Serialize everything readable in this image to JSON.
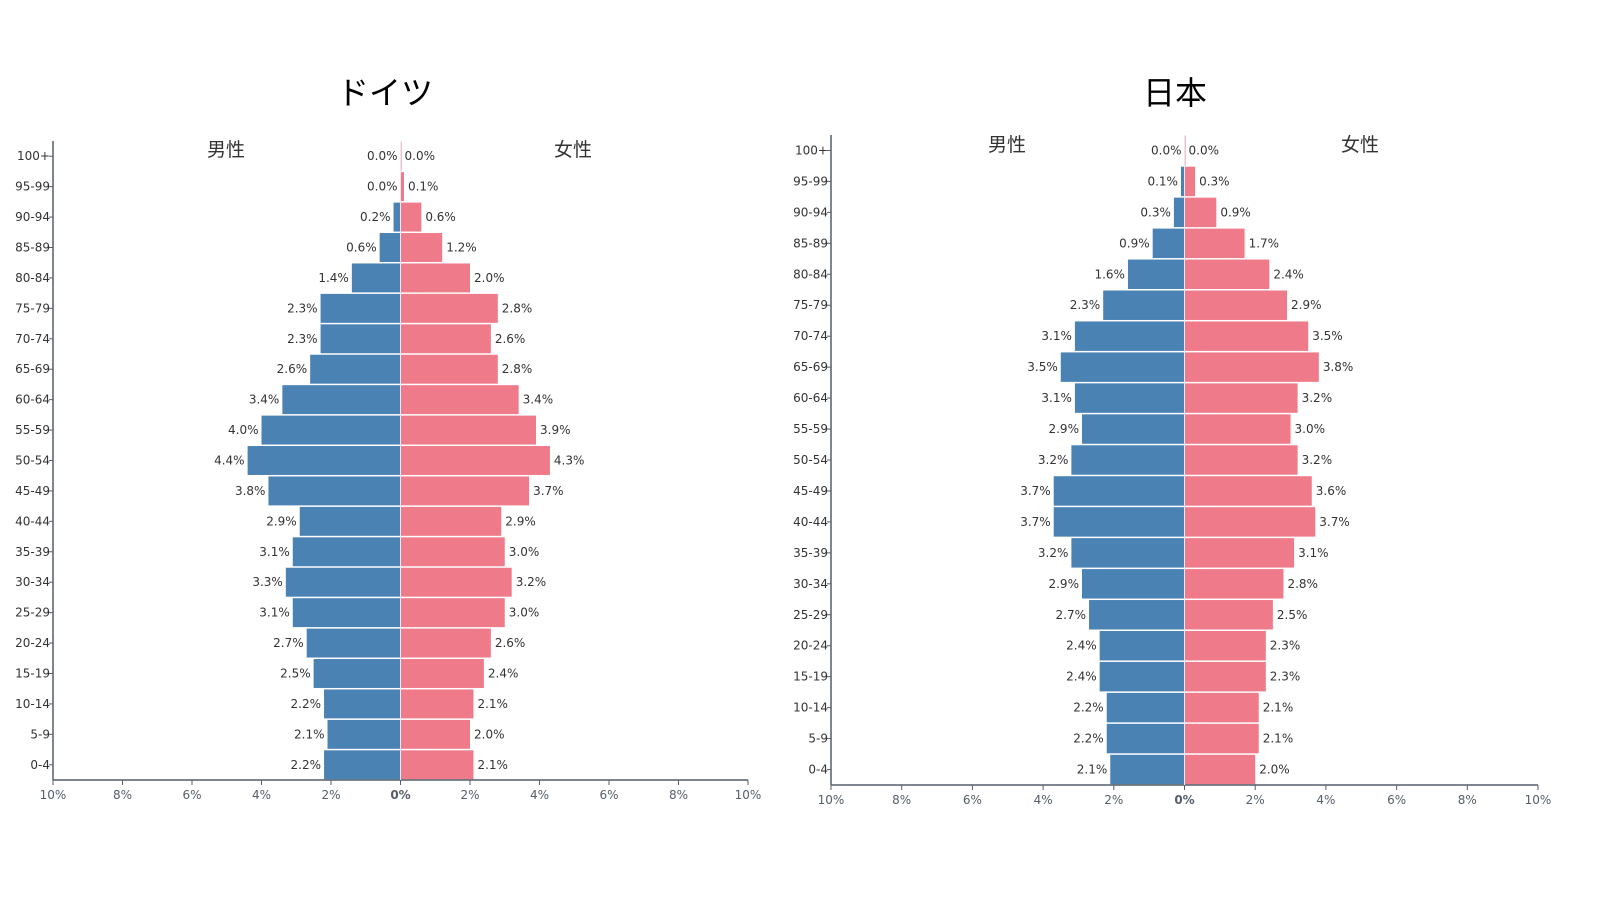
{
  "colors": {
    "male": "#4a82b4",
    "female": "#ef7b8a",
    "axis": "#555e6b",
    "text": "#333333"
  },
  "chart_data": [
    {
      "type": "bar",
      "title": "ドイツ",
      "male_label": "男性",
      "female_label": "女性",
      "categories": [
        "100+",
        "95-99",
        "90-94",
        "85-89",
        "80-84",
        "75-79",
        "70-74",
        "65-69",
        "60-64",
        "55-59",
        "50-54",
        "45-49",
        "40-44",
        "35-39",
        "30-34",
        "25-29",
        "20-24",
        "15-19",
        "10-14",
        "5-9",
        "0-4"
      ],
      "series": [
        {
          "name": "男性",
          "values": [
            0.0,
            0.0,
            0.2,
            0.6,
            1.4,
            2.3,
            2.3,
            2.6,
            3.4,
            4.0,
            4.4,
            3.8,
            2.9,
            3.1,
            3.3,
            3.1,
            2.7,
            2.5,
            2.2,
            2.1,
            2.2
          ],
          "labels": [
            "0.0%",
            "0.0%",
            "0.2%",
            "0.6%",
            "1.4%",
            "2.3%",
            "2.3%",
            "2.6%",
            "3.4%",
            "4.0%",
            "4.4%",
            "3.8%",
            "2.9%",
            "3.1%",
            "3.3%",
            "3.1%",
            "2.7%",
            "2.5%",
            "2.2%",
            "2.1%",
            "2.2%"
          ]
        },
        {
          "name": "女性",
          "values": [
            0.0,
            0.1,
            0.6,
            1.2,
            2.0,
            2.8,
            2.6,
            2.8,
            3.4,
            3.9,
            4.3,
            3.7,
            2.9,
            3.0,
            3.2,
            3.0,
            2.6,
            2.4,
            2.1,
            2.0,
            2.1
          ],
          "labels": [
            "0.0%",
            "0.1%",
            "0.6%",
            "1.2%",
            "2.0%",
            "2.8%",
            "2.6%",
            "2.8%",
            "3.4%",
            "3.9%",
            "4.3%",
            "3.7%",
            "2.9%",
            "3.0%",
            "3.2%",
            "3.0%",
            "2.6%",
            "2.4%",
            "2.1%",
            "2.0%",
            "2.1%"
          ]
        }
      ],
      "xlim": [
        -10,
        10
      ],
      "xticks": [
        "10%",
        "8%",
        "6%",
        "4%",
        "2%",
        "0%",
        "2%",
        "4%",
        "6%",
        "8%",
        "10%"
      ]
    },
    {
      "type": "bar",
      "title": "日本",
      "male_label": "男性",
      "female_label": "女性",
      "categories": [
        "100+",
        "95-99",
        "90-94",
        "85-89",
        "80-84",
        "75-79",
        "70-74",
        "65-69",
        "60-64",
        "55-59",
        "50-54",
        "45-49",
        "40-44",
        "35-39",
        "30-34",
        "25-29",
        "20-24",
        "15-19",
        "10-14",
        "5-9",
        "0-4"
      ],
      "series": [
        {
          "name": "男性",
          "values": [
            0.0,
            0.1,
            0.3,
            0.9,
            1.6,
            2.3,
            3.1,
            3.5,
            3.1,
            2.9,
            3.2,
            3.7,
            3.7,
            3.2,
            2.9,
            2.7,
            2.4,
            2.4,
            2.2,
            2.2,
            2.1
          ],
          "labels": [
            "0.0%",
            "0.1%",
            "0.3%",
            "0.9%",
            "1.6%",
            "2.3%",
            "3.1%",
            "3.5%",
            "3.1%",
            "2.9%",
            "3.2%",
            "3.7%",
            "3.7%",
            "3.2%",
            "2.9%",
            "2.7%",
            "2.4%",
            "2.4%",
            "2.2%",
            "2.2%",
            "2.1%"
          ]
        },
        {
          "name": "女性",
          "values": [
            0.0,
            0.3,
            0.9,
            1.7,
            2.4,
            2.9,
            3.5,
            3.8,
            3.2,
            3.0,
            3.2,
            3.6,
            3.7,
            3.1,
            2.8,
            2.5,
            2.3,
            2.3,
            2.1,
            2.1,
            2.0
          ],
          "labels": [
            "0.0%",
            "0.3%",
            "0.9%",
            "1.7%",
            "2.4%",
            "2.9%",
            "3.5%",
            "3.8%",
            "3.2%",
            "3.0%",
            "3.2%",
            "3.6%",
            "3.7%",
            "3.1%",
            "2.8%",
            "2.5%",
            "2.3%",
            "2.3%",
            "2.1%",
            "2.1%",
            "2.0%"
          ]
        }
      ],
      "xlim": [
        -10,
        10
      ],
      "xticks": [
        "10%",
        "8%",
        "6%",
        "4%",
        "2%",
        "0%",
        "2%",
        "4%",
        "6%",
        "8%",
        "10%"
      ]
    }
  ]
}
